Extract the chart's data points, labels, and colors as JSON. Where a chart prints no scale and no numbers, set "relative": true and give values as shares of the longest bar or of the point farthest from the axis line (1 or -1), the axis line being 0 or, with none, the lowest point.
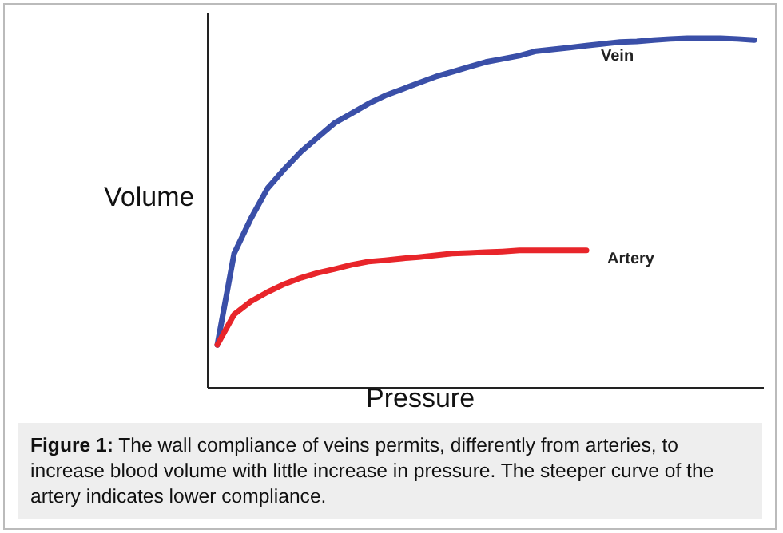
{
  "chart_data": {
    "type": "line",
    "relative": true,
    "xlabel": "Pressure",
    "ylabel": "Volume",
    "categories": [
      null,
      null,
      null,
      null,
      null,
      null,
      null,
      null,
      null,
      null,
      null,
      null,
      null,
      null,
      null,
      null,
      null,
      null,
      null,
      null,
      null,
      null,
      null,
      null,
      null,
      null,
      null,
      null,
      null,
      null,
      null,
      null,
      null
    ],
    "series": [
      {
        "name": "Vein",
        "color": "#3a4fa8",
        "values": [
          0.123,
          0.384,
          0.484,
          0.571,
          0.626,
          0.676,
          0.717,
          0.758,
          0.785,
          0.813,
          0.836,
          0.854,
          0.872,
          0.89,
          0.904,
          0.918,
          0.932,
          0.941,
          0.95,
          0.963,
          0.968,
          0.973,
          0.979,
          0.984,
          0.989,
          0.991,
          0.995,
          0.998,
          1,
          1,
          1,
          0.998,
          0.995
        ]
      },
      {
        "name": "Artery",
        "color": "#e8252a",
        "values": [
          0.123,
          0.21,
          0.247,
          0.274,
          0.297,
          0.315,
          0.329,
          0.34,
          0.352,
          0.361,
          0.365,
          0.37,
          0.374,
          0.379,
          0.384,
          0.386,
          0.388,
          0.39,
          0.393,
          0.393,
          0.393,
          0.393,
          0.393,
          null,
          null,
          null,
          null,
          null,
          null,
          null,
          null,
          null,
          null
        ]
      }
    ],
    "annotations": [
      "Figure 1: The wall compliance of veins permits, differently from arteries, to increase blood volume with little increase in pressure. The steeper curve of the artery indicates lower compliance."
    ]
  }
}
